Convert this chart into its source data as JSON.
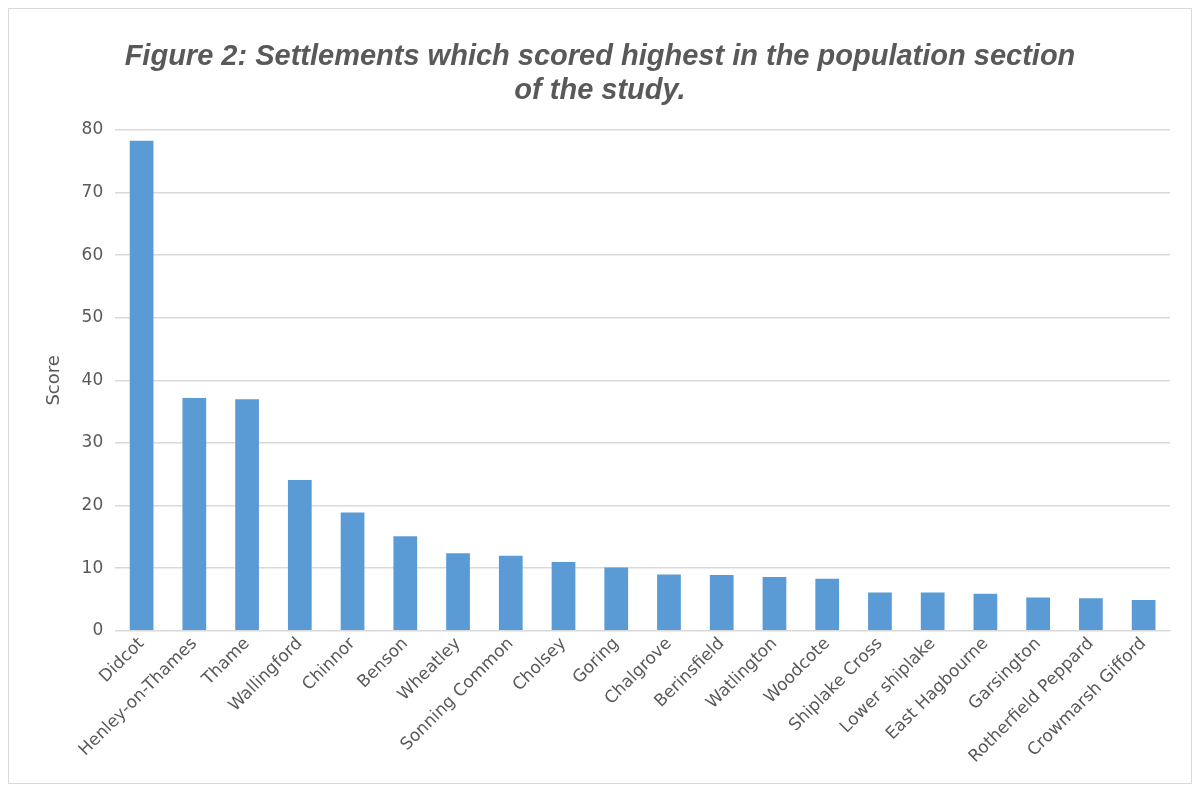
{
  "chart_data": {
    "type": "bar",
    "title": "Figure 2: Settlements which scored highest in the population section of the study.",
    "ylabel": "Score",
    "categories": [
      "Didcot",
      "Henley-on-Thames",
      "Thame",
      "Wallingford",
      "Chinnor",
      "Benson",
      "Wheatley",
      "Sonning Common",
      "Cholsey",
      "Goring",
      "Chalgrove",
      "Berinsfield",
      "Watlington",
      "Woodcote",
      "Shiplake Cross",
      "Lower shiplake",
      "East Hagbourne",
      "Garsington",
      "Rotherfield Peppard",
      "Crowmarsh Gifford"
    ],
    "values": [
      78.3,
      37.2,
      37.0,
      24.1,
      18.9,
      15.1,
      12.4,
      12.0,
      11.0,
      10.1,
      9.0,
      8.9,
      8.6,
      8.3,
      6.1,
      6.1,
      5.9,
      5.3,
      5.2,
      4.9
    ],
    "color": "#5b9bd5",
    "ylim": [
      0,
      80
    ],
    "yticks": [
      0,
      10,
      20,
      30,
      40,
      50,
      60,
      70,
      80
    ],
    "grid": "y",
    "legend": false
  }
}
